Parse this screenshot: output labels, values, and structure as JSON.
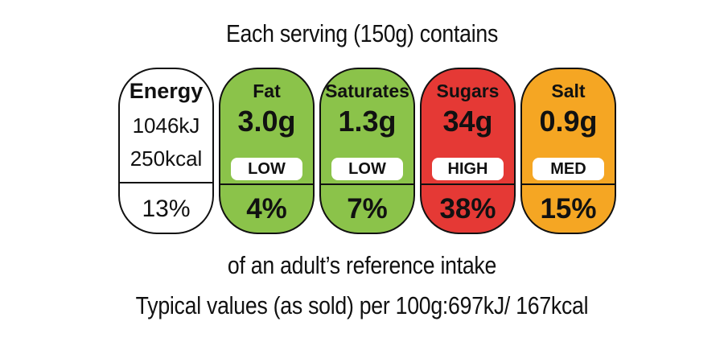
{
  "header": {
    "text": "Each serving (150g) contains"
  },
  "footer": {
    "reference_text": "of an adult’s reference intake",
    "typical_text": "Typical values (as sold) per 100g:697kJ/ 167kcal"
  },
  "energy": {
    "label": "Energy",
    "kj": "1046kJ",
    "kcal": "250kcal",
    "percent": "13%"
  },
  "nutrients": [
    {
      "name": "Fat",
      "amount": "3.0g",
      "level": "LOW",
      "percent": "4%",
      "color": "#8bc34a"
    },
    {
      "name": "Saturates",
      "amount": "1.3g",
      "level": "LOW",
      "percent": "7%",
      "color": "#8bc34a"
    },
    {
      "name": "Sugars",
      "amount": "34g",
      "level": "HIGH",
      "percent": "38%",
      "color": "#e53935"
    },
    {
      "name": "Salt",
      "amount": "0.9g",
      "level": "MED",
      "percent": "15%",
      "color": "#f5a623"
    }
  ]
}
